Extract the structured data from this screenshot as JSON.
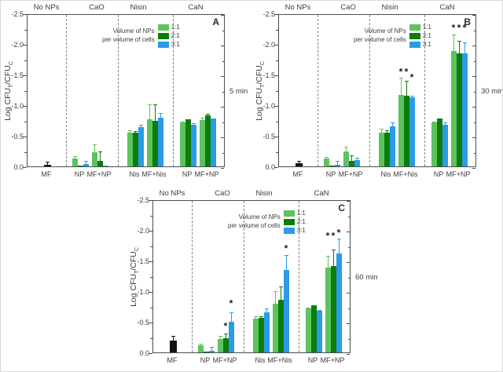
{
  "figure": {
    "ylabel": {
      "pre": "Log CFU",
      "sub1": "T",
      "mid": "/CFU",
      "sub2": "C"
    },
    "y_axis": {
      "tick_labels": [
        "0.0",
        "-0.5",
        "-1.0",
        "-1.5",
        "-2.0",
        "-2.5"
      ],
      "min": 0,
      "max": 2.5,
      "major_step": 0.5,
      "minor_step": 0.25,
      "note": "Axis inverted: 0.0 at bottom, -2.5 at top; bar values stored as positive magnitudes of log reduction."
    },
    "legend": {
      "title_lines": [
        "Volume of NPs",
        "per volume of cells"
      ],
      "items": [
        {
          "label": "1:1",
          "color": "#5cc35e"
        },
        {
          "label": "2:1",
          "color": "#0b7d0c"
        },
        {
          "label": "3:1",
          "color": "#2b9be6"
        }
      ]
    },
    "colors": {
      "single_bar": "#121212",
      "axis": "#4c4c4c",
      "text": "#3d3d3d",
      "divider": "#858585",
      "star": "#1a1a1a"
    }
  },
  "chart_data": [
    {
      "type": "bar",
      "panel_label": "A",
      "time_label": "5 min",
      "sections": [
        {
          "name": "No NPs",
          "groups": [
            {
              "label": "MF",
              "single": true,
              "value": 0.02,
              "err_top": 0.1
            }
          ]
        },
        {
          "name": "CaO",
          "groups": [
            {
              "label": "NP",
              "values": [
                0.13,
                0.01,
                0.04
              ],
              "err_tops": [
                0.19,
                0.01,
                0.12
              ]
            },
            {
              "label": "MF+NP",
              "values": [
                0.23,
                0.09,
                0.01
              ],
              "err_tops": [
                0.39,
                0.27,
                0.01
              ]
            }
          ]
        },
        {
          "name": "Nisin",
          "groups": [
            {
              "label": "Nis",
              "values": [
                0.55,
                0.55,
                0.64
              ],
              "err_tops": [
                0.62,
                0.6,
                0.71
              ]
            },
            {
              "label": "MF+Nis",
              "values": [
                0.77,
                0.75,
                0.79
              ],
              "err_tops": [
                1.04,
                1.04,
                0.9
              ]
            }
          ]
        },
        {
          "name": "CaN",
          "groups": [
            {
              "label": "NP",
              "values": [
                0.72,
                0.77,
                0.68
              ],
              "err_tops": [
                0.76,
                0.8,
                0.73
              ]
            },
            {
              "label": "MF+NP",
              "values": [
                0.76,
                0.83,
                0.78
              ],
              "err_tops": [
                0.82,
                0.88,
                0.81
              ]
            }
          ]
        }
      ]
    },
    {
      "type": "bar",
      "panel_label": "B",
      "time_label": "30 min",
      "sections": [
        {
          "name": "No NPs",
          "groups": [
            {
              "label": "MF",
              "single": true,
              "value": 0.05,
              "err_top": 0.12
            }
          ]
        },
        {
          "name": "CaO",
          "groups": [
            {
              "label": "NP",
              "values": [
                0.13,
                0.01,
                0.03
              ],
              "err_tops": [
                0.18,
                0.01,
                0.12
              ]
            },
            {
              "label": "MF+NP",
              "values": [
                0.25,
                0.09,
                0.1
              ],
              "err_tops": [
                0.34,
                0.2,
                0.17
              ]
            }
          ]
        },
        {
          "name": "Nisin",
          "groups": [
            {
              "label": "Nis",
              "values": [
                0.55,
                0.55,
                0.65
              ],
              "err_tops": [
                0.64,
                0.61,
                0.74
              ]
            },
            {
              "label": "MF+Nis",
              "values": [
                1.17,
                1.15,
                1.13
              ],
              "err_tops": [
                1.47,
                1.42,
                1.18
              ],
              "stars": [
                1.57,
                1.57,
                1.47
              ]
            }
          ]
        },
        {
          "name": "CaN",
          "groups": [
            {
              "label": "NP",
              "values": [
                0.72,
                0.78,
                0.68
              ],
              "err_tops": [
                0.76,
                0.81,
                0.74
              ]
            },
            {
              "label": "MF+NP",
              "values": [
                1.89,
                1.84,
                1.84
              ],
              "err_tops": [
                2.18,
                2.08,
                2.05
              ],
              "stars": [
                2.28,
                2.28,
                2.28
              ]
            }
          ]
        }
      ]
    },
    {
      "type": "bar",
      "panel_label": "C",
      "time_label": "60 min",
      "sections": [
        {
          "name": "No NPs",
          "groups": [
            {
              "label": "MF",
              "single": true,
              "value": 0.19,
              "err_top": 0.29
            }
          ]
        },
        {
          "name": "CaO",
          "groups": [
            {
              "label": "NP",
              "values": [
                0.12,
                0.01,
                0.03
              ],
              "err_tops": [
                0.17,
                0.01,
                0.11
              ]
            },
            {
              "label": "MF+NP",
              "values": [
                0.22,
                0.23,
                0.5
              ],
              "err_tops": [
                0.3,
                0.33,
                0.68
              ],
              "stars": [
                null,
                0.45,
                0.82
              ]
            }
          ]
        },
        {
          "name": "Nisin",
          "groups": [
            {
              "label": "Nis",
              "values": [
                0.55,
                0.56,
                0.65
              ],
              "err_tops": [
                0.62,
                0.62,
                0.74
              ]
            },
            {
              "label": "MF+Nis",
              "values": [
                0.8,
                0.86,
                1.35
              ],
              "err_tops": [
                1.03,
                1.1,
                1.62
              ],
              "stars": [
                null,
                null,
                1.72
              ]
            }
          ]
        },
        {
          "name": "CaN",
          "groups": [
            {
              "label": "NP",
              "values": [
                0.72,
                0.77,
                0.68
              ],
              "err_tops": [
                0.76,
                0.8,
                0.72
              ]
            },
            {
              "label": "MF+NP",
              "values": [
                1.39,
                1.41,
                1.62
              ],
              "err_tops": [
                1.6,
                1.7,
                1.88
              ],
              "stars": [
                1.92,
                1.92,
                1.98
              ]
            }
          ]
        }
      ]
    }
  ]
}
